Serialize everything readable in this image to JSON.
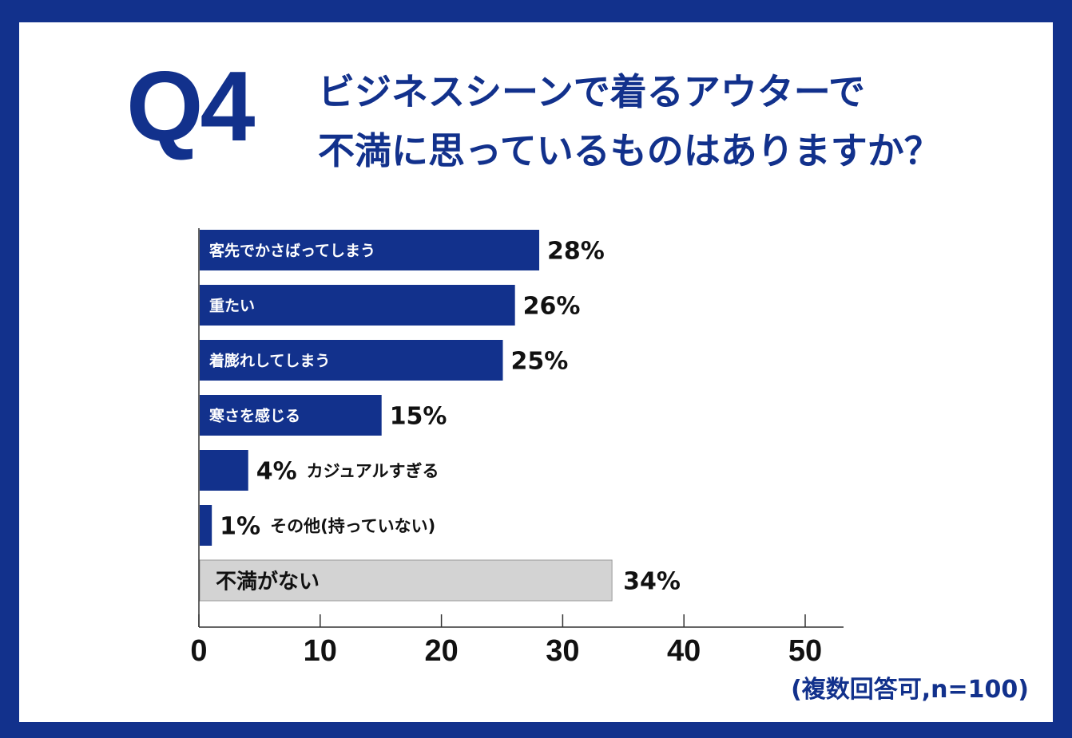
{
  "question": {
    "mark": "Q4",
    "line1": "ビジネスシーンで着るアウターで",
    "line2": "不満に思っているものはありますか？"
  },
  "note": "(複数回答可,n=100)",
  "colors": {
    "background": "#12318c",
    "bar": "#12318c",
    "bar_neutral": "#d3d3d3",
    "text": "#111111"
  },
  "chart_data": {
    "type": "bar",
    "orientation": "horizontal",
    "categories": [
      "客先でかさばってしまう",
      "重たい",
      "着膨れしてしまう",
      "寒さを感じる",
      "カジュアルすぎる",
      "その他(持っていない)",
      "不満がない"
    ],
    "values": [
      28,
      26,
      25,
      15,
      4,
      1,
      34
    ],
    "value_labels": [
      "28%",
      "26%",
      "25%",
      "15%",
      "4%",
      "1%",
      "34%"
    ],
    "highlight": [
      true,
      true,
      true,
      true,
      true,
      true,
      false
    ],
    "label_inside": [
      true,
      true,
      true,
      true,
      false,
      false,
      true
    ],
    "xlim": [
      0,
      53
    ],
    "xticks": [
      0,
      10,
      20,
      30,
      40,
      50
    ],
    "grid": false
  }
}
